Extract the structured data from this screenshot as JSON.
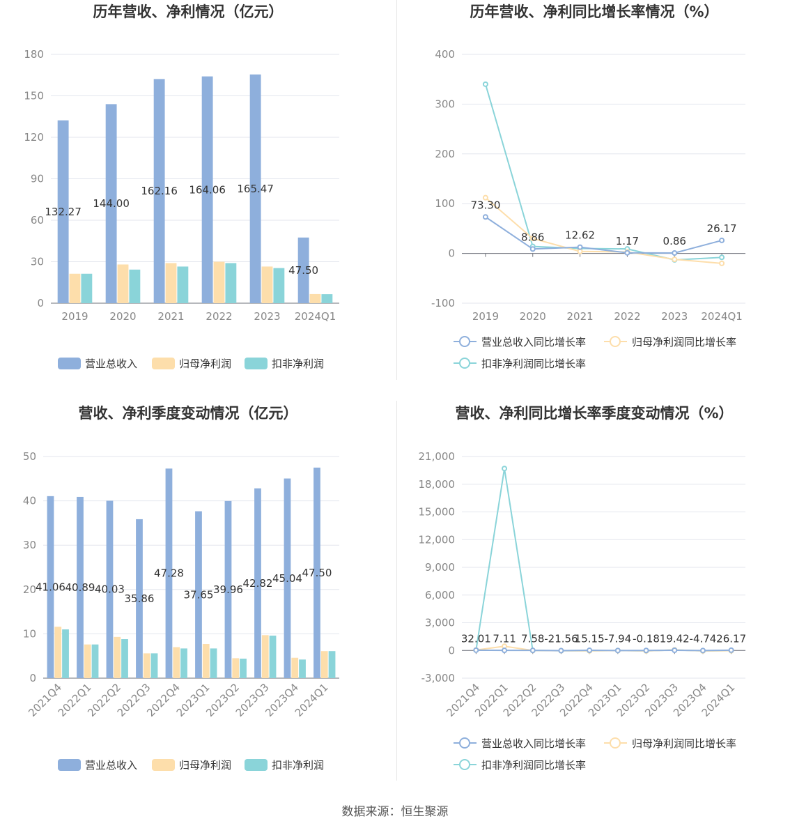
{
  "colors": {
    "revenue": "#8eafdc",
    "net_profit": "#fddeab",
    "deducted_profit": "#8ad4d9",
    "grid": "#e3e6ee",
    "axis_text": "#888888",
    "title": "#333333"
  },
  "source": "数据来源：恒生聚源",
  "chart_data": [
    {
      "type": "bar",
      "title": "历年营收、净利情况（亿元）",
      "categories": [
        "2019",
        "2020",
        "2021",
        "2022",
        "2023",
        "2024Q1"
      ],
      "ylim": [
        0,
        180
      ],
      "yticks": [
        "0",
        "30",
        "60",
        "90",
        "120",
        "150",
        "180"
      ],
      "series": [
        {
          "name": "营业总收入",
          "values": [
            132.27,
            144.0,
            162.16,
            164.06,
            165.47,
            47.5
          ],
          "labels": [
            "132.27",
            "144.00",
            "162.16",
            "164.06",
            "165.47",
            "47.50"
          ]
        },
        {
          "name": "归母净利润",
          "values": [
            21.3,
            28.0,
            29.0,
            30.0,
            26.5,
            6.6
          ]
        },
        {
          "name": "扣非净利润",
          "values": [
            21.3,
            24.3,
            26.5,
            29.0,
            25.4,
            6.5
          ]
        }
      ],
      "legend": "bottom"
    },
    {
      "type": "line",
      "title": "历年营收、净利同比增长率情况（%）",
      "categories": [
        "2019",
        "2020",
        "2021",
        "2022",
        "2023",
        "2024Q1"
      ],
      "ylim": [
        -100,
        400
      ],
      "yticks": [
        "-100",
        "0",
        "100",
        "200",
        "300",
        "400"
      ],
      "series": [
        {
          "name": "营业总收入同比增长率",
          "values": [
            73.3,
            8.86,
            12.62,
            1.17,
            0.86,
            26.17
          ],
          "labels": [
            "73.30",
            "8.86",
            "12.62",
            "1.17",
            "0.86",
            "26.17"
          ]
        },
        {
          "name": "归母净利润同比增长率",
          "values": [
            112,
            30,
            4,
            3,
            -12,
            -20
          ]
        },
        {
          "name": "扣非净利润同比增长率",
          "values": [
            340,
            14,
            10,
            9,
            -13,
            -8
          ]
        }
      ],
      "legend": "bottom"
    },
    {
      "type": "bar",
      "title": "营收、净利季度变动情况（亿元）",
      "categories": [
        "2021Q4",
        "2022Q1",
        "2022Q2",
        "2022Q3",
        "2022Q4",
        "2023Q1",
        "2023Q2",
        "2023Q3",
        "2023Q4",
        "2024Q1"
      ],
      "ylim": [
        0,
        50
      ],
      "yticks": [
        "0",
        "10",
        "20",
        "30",
        "40",
        "50"
      ],
      "series": [
        {
          "name": "营业总收入",
          "values": [
            41.06,
            40.89,
            40.03,
            35.86,
            47.28,
            37.65,
            39.96,
            42.82,
            45.04,
            47.5
          ],
          "labels": [
            "41.06",
            "40.89",
            "40.03",
            "35.86",
            "47.28",
            "37.65",
            "39.96",
            "42.82",
            "45.04",
            "47.50"
          ]
        },
        {
          "name": "归母净利润",
          "values": [
            11.6,
            7.6,
            9.3,
            5.6,
            7.0,
            7.7,
            4.5,
            9.7,
            4.6,
            6.1
          ]
        },
        {
          "name": "扣非净利润",
          "values": [
            11.0,
            7.6,
            8.8,
            5.6,
            6.7,
            6.7,
            4.4,
            9.6,
            4.2,
            6.1
          ]
        }
      ],
      "legend": "bottom"
    },
    {
      "type": "line",
      "title": "营收、净利同比增长率季度变动情况（%）",
      "categories": [
        "2021Q4",
        "2022Q1",
        "2022Q2",
        "2022Q3",
        "2022Q4",
        "2023Q1",
        "2023Q2",
        "2023Q3",
        "2023Q4",
        "2024Q1"
      ],
      "ylim": [
        -3000,
        21000
      ],
      "yticks": [
        "-3,000",
        "0",
        "3,000",
        "6,000",
        "9,000",
        "12,000",
        "15,000",
        "18,000",
        "21,000"
      ],
      "series": [
        {
          "name": "营业总收入同比增长率",
          "values": [
            32.01,
            7.11,
            7.58,
            -21.56,
            15.15,
            -7.94,
            -0.18,
            19.42,
            -4.74,
            26.17
          ],
          "labels": [
            "32.01",
            "7.11",
            "7.58",
            "-21.56",
            "15.15",
            "-7.94",
            "-0.18",
            "19.42",
            "-4.74",
            "26.17"
          ]
        },
        {
          "name": "归母净利润同比增长率",
          "values": [
            50,
            450,
            0,
            -30,
            -40,
            -10,
            -50,
            60,
            -50,
            -20
          ]
        },
        {
          "name": "扣非净利润同比增长率",
          "values": [
            40,
            19700,
            0,
            -30,
            -40,
            -10,
            -50,
            60,
            -50,
            -20
          ]
        }
      ],
      "legend": "bottom"
    }
  ]
}
